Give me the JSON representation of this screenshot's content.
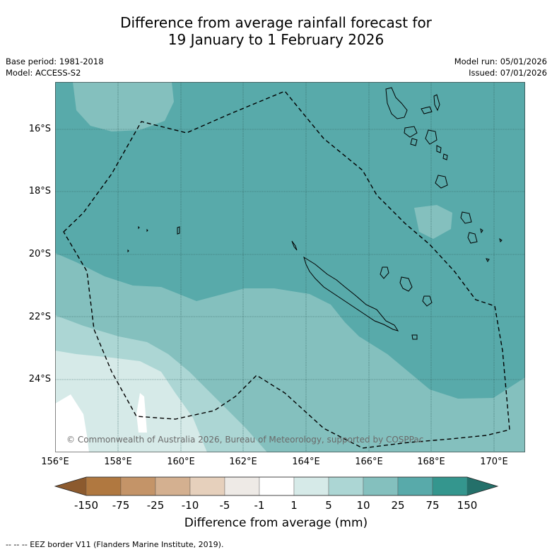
{
  "title": {
    "line1": "Difference from average rainfall forecast for",
    "line2": "19 January to 1 February 2026"
  },
  "meta": {
    "base_period": "Base period: 1981-2018",
    "model": "Model: ACCESS-S2",
    "model_run": "Model run: 05/01/2026",
    "issued": "Issued: 07/01/2026"
  },
  "axes": {
    "latitudes": [
      "16°S",
      "18°S",
      "20°S",
      "22°S",
      "24°S"
    ],
    "longitudes": [
      "156°E",
      "158°E",
      "160°E",
      "162°E",
      "164°E",
      "166°E",
      "168°E",
      "170°E"
    ]
  },
  "copyright": "© Commonwealth of Australia 2026, Bureau of Meteorology, supported by COSPPac",
  "colorbar": {
    "title": "Difference from average (mm)",
    "labels": [
      "-150",
      "-75",
      "-25",
      "-10",
      "-5",
      "-1",
      "1",
      "5",
      "10",
      "25",
      "75",
      "150"
    ],
    "colors": [
      "#8c5a2e",
      "#b07840",
      "#c49468",
      "#d4b090",
      "#e6d0bc",
      "#eeeae6",
      "#ffffff",
      "#d6eae8",
      "#acd6d4",
      "#84c0be",
      "#58aaaa",
      "#34968e",
      "#24706a"
    ]
  },
  "footer": "--  --  -- EEZ border V11 (Flanders Marine Institute, 2019)."
}
